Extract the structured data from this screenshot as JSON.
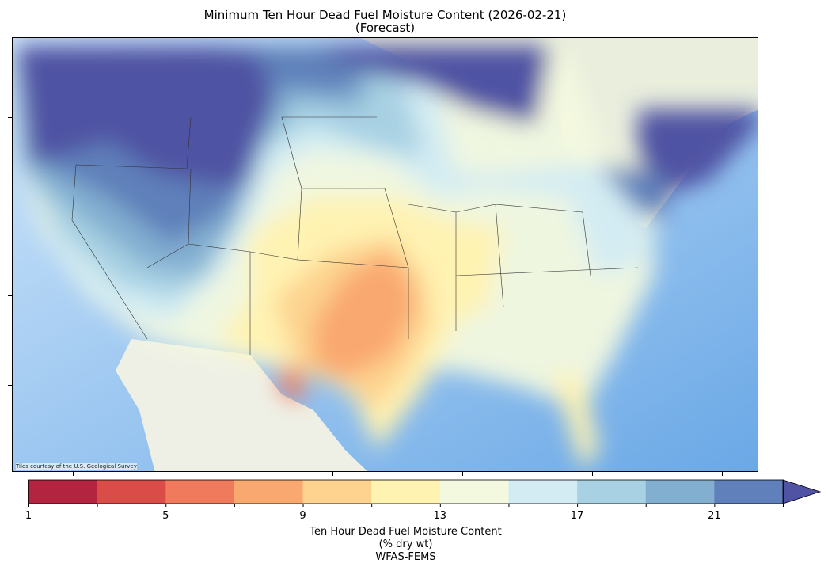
{
  "title": {
    "line1": "Minimum Ten Hour Dead Fuel Moisture Content (2026-02-21)",
    "line2": "(Forecast)"
  },
  "map": {
    "attribution": "Tiles courtesy of the U.S. Geological Survey"
  },
  "colorbar": {
    "bounds": [
      1,
      3,
      5,
      7,
      9,
      11,
      13,
      15,
      17,
      19,
      21,
      23
    ],
    "tick_labels": [
      "1",
      "5",
      "9",
      "13",
      "17",
      "21"
    ],
    "colors": [
      "#b2243f",
      "#d94c48",
      "#f07a5c",
      "#f9a86f",
      "#fdd38f",
      "#fff3b2",
      "#f3f9df",
      "#d3ecf3",
      "#a8d1e3",
      "#82aed0",
      "#5f80ba"
    ],
    "extend_color": "#5053a3",
    "label_line1": "Ten Hour Dead Fuel Moisture Content",
    "label_line2": "(% dry wt)",
    "label_line3": "WFAS-FEMS"
  }
}
